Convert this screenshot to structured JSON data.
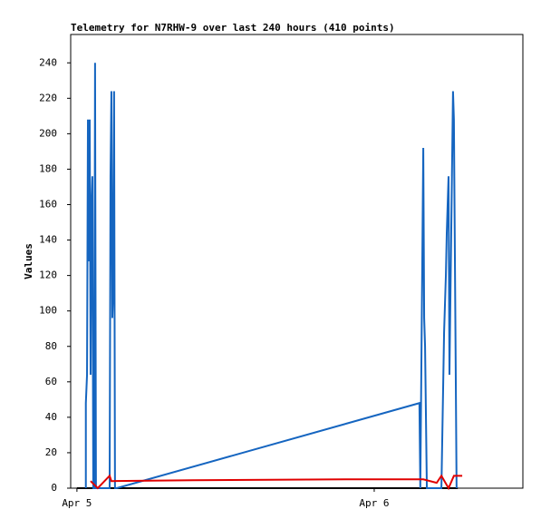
{
  "chart_data": {
    "type": "line",
    "title": "Telemetry for N7RHW-9 over last 240 hours (410 points)",
    "y_label": "Values",
    "xlim": [
      -0.021,
      1.5
    ],
    "xticks": [
      {
        "value": 0,
        "label": "Apr 5"
      },
      {
        "value": 1,
        "label": "Apr 6"
      }
    ],
    "ylim": [
      0,
      256
    ],
    "yticks": [
      0,
      20,
      40,
      60,
      80,
      100,
      120,
      140,
      160,
      180,
      200,
      220,
      240
    ],
    "series": [
      {
        "color": "#000000",
        "x": [
          0.0,
          1.281
        ],
        "values": [
          0,
          0
        ]
      },
      {
        "color": "#1565c0",
        "x": [
          0.03,
          0.03,
          0.034,
          0.037,
          0.04,
          0.043,
          0.046,
          0.049,
          0.052,
          0.055,
          0.058,
          0.061,
          0.064,
          0.11,
          0.113,
          0.116,
          0.119,
          0.122,
          0.125,
          0.128,
          0.134,
          1.152,
          1.155,
          1.165,
          1.168,
          1.171,
          1.174,
          1.177,
          1.226,
          1.235,
          1.241,
          1.244,
          1.25,
          1.253,
          1.259,
          1.265,
          1.268,
          1.277
        ],
        "values": [
          0,
          48,
          64,
          208,
          128,
          208,
          64,
          160,
          176,
          0,
          0,
          240,
          0,
          0,
          176,
          224,
          96,
          112,
          224,
          0,
          0,
          48,
          0,
          192,
          96,
          80,
          40,
          0,
          0,
          88,
          120,
          144,
          176,
          64,
          144,
          224,
          208,
          0
        ]
      },
      {
        "color": "#e00000",
        "x": [
          0.046,
          0.07,
          0.11,
          0.116,
          0.39,
          0.905,
          1.165,
          1.21,
          1.226,
          1.25,
          1.268,
          1.296
        ],
        "values": [
          4,
          0,
          7,
          4,
          4.5,
          5,
          5,
          3,
          7,
          0,
          7,
          7
        ]
      }
    ]
  }
}
